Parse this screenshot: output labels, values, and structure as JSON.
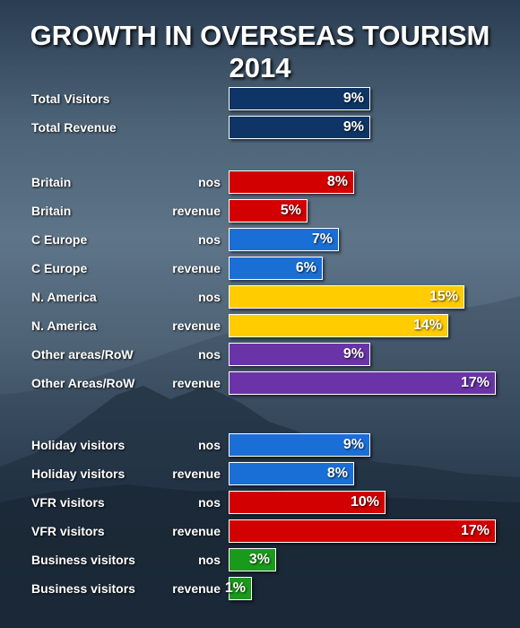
{
  "chart_data": {
    "type": "bar",
    "orientation": "horizontal",
    "title": "GROWTH IN OVERSEAS TOURISM 2014",
    "unit": "%",
    "groups": [
      {
        "rows": [
          {
            "category": "Total Visitors",
            "metric": "",
            "value": 9,
            "label": "9%",
            "color": "#0f3566"
          },
          {
            "category": "Total Revenue",
            "metric": "",
            "value": 9,
            "label": "9%",
            "color": "#0f3566"
          }
        ]
      },
      {
        "rows": [
          {
            "category": "Britain",
            "metric": "nos",
            "value": 8,
            "label": "8%",
            "color": "#d20000"
          },
          {
            "category": "Britain",
            "metric": "revenue",
            "value": 5,
            "label": "5%",
            "color": "#d20000"
          },
          {
            "category": "C Europe",
            "metric": "nos",
            "value": 7,
            "label": "7%",
            "color": "#1a6fd6"
          },
          {
            "category": "C Europe",
            "metric": "revenue",
            "value": 6,
            "label": "6%",
            "color": "#1a6fd6"
          },
          {
            "category": "N. America",
            "metric": "nos",
            "value": 15,
            "label": "15%",
            "color": "#ffcc00"
          },
          {
            "category": "N. America",
            "metric": "revenue",
            "value": 14,
            "label": "14%",
            "color": "#ffcc00"
          },
          {
            "category": "Other areas/RoW",
            "metric": "nos",
            "value": 9,
            "label": "9%",
            "color": "#6a34a8"
          },
          {
            "category": "Other Areas/RoW",
            "metric": "revenue",
            "value": 17,
            "label": "17%",
            "color": "#6a34a8"
          }
        ]
      },
      {
        "rows": [
          {
            "category": "Holiday visitors",
            "metric": "nos",
            "value": 9,
            "label": "9%",
            "color": "#1a6fd6"
          },
          {
            "category": "Holiday visitors",
            "metric": "revenue",
            "value": 8,
            "label": "8%",
            "color": "#1a6fd6"
          },
          {
            "category": "VFR visitors",
            "metric": "nos",
            "value": 10,
            "label": "10%",
            "color": "#d20000"
          },
          {
            "category": "VFR visitors",
            "metric": "revenue",
            "value": 17,
            "label": "17%",
            "color": "#d20000"
          },
          {
            "category": "Business visitors",
            "metric": "nos",
            "value": 3,
            "label": "3%",
            "color": "#1a9a1a"
          },
          {
            "category": "Business visitors",
            "metric": "revenue",
            "value": 1,
            "label": "1%",
            "color": "#1a9a1a"
          }
        ]
      }
    ],
    "xlim": [
      0,
      17
    ],
    "grid": false,
    "legend": "none"
  }
}
